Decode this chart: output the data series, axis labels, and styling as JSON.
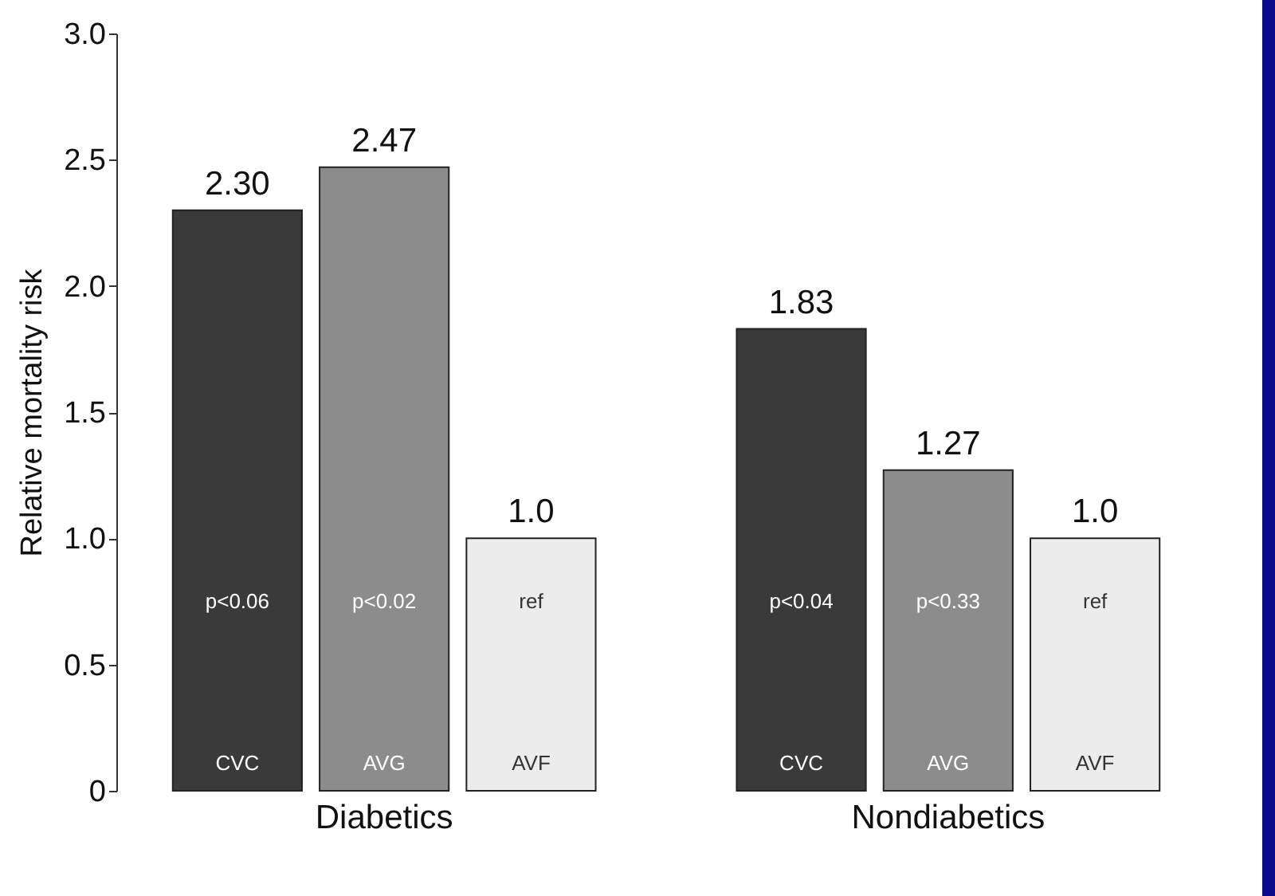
{
  "chart_data": {
    "type": "bar",
    "ylabel": "Relative mortality risk",
    "categories": [
      "Diabetics",
      "Nondiabetics"
    ],
    "series": [
      {
        "name": "CVC",
        "color": "#3a3a3a",
        "values": [
          2.3,
          1.83
        ],
        "value_labels": [
          "2.30",
          "1.83"
        ]
      },
      {
        "name": "AVG",
        "color": "#8c8c8c",
        "values": [
          2.47,
          1.27
        ],
        "value_labels": [
          "2.47",
          "1.27"
        ]
      },
      {
        "name": "AVF",
        "color": "#ececec",
        "values": [
          1.0,
          1.0
        ],
        "value_labels": [
          "1.0",
          "1.0"
        ]
      }
    ],
    "annotations": [
      "p<0.06",
      "p<0.02",
      "ref",
      "p<0.04",
      "p<0.33",
      "ref"
    ],
    "ylim": [
      0,
      3
    ],
    "yticks": [
      0,
      0.5,
      {
        "value": 1,
        "label": "1.0"
      },
      1.5,
      {
        "value": 2,
        "label": "2.0"
      },
      2.5,
      {
        "value": 3,
        "label": "3.0"
      }
    ],
    "grid": false,
    "legend": false
  }
}
